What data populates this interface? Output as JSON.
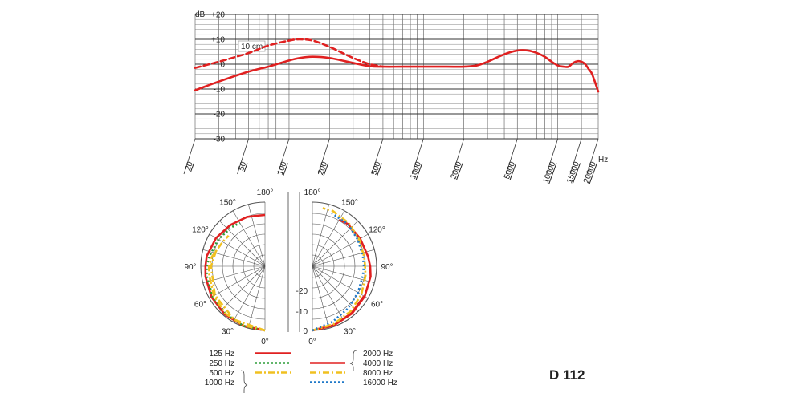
{
  "chart_data": [
    {
      "type": "line",
      "title": "",
      "x_scale": "log",
      "xlim": [
        20,
        20000
      ],
      "ylim": [
        -30,
        20
      ],
      "y_unit_label": "dB",
      "x_unit_label": "Hz",
      "y_ticks": [
        "+20",
        "+10",
        "0",
        "-10",
        "-20",
        "-30"
      ],
      "x_ticks": [
        "20",
        "50",
        "100",
        "200",
        "500",
        "1000",
        "2000",
        "5000",
        "10000",
        "15000",
        "20000"
      ],
      "annotation": "10 cm",
      "series": [
        {
          "style": "solid",
          "color": "#e02020",
          "x": [
            20,
            30,
            50,
            70,
            100,
            120,
            150,
            200,
            300,
            400,
            500,
            700,
            1000,
            1500,
            2000,
            2500,
            3000,
            4000,
            5000,
            6000,
            7000,
            8000,
            9000,
            10000,
            11000,
            12000,
            13000,
            14000,
            15000,
            16000,
            17000,
            18000,
            20000
          ],
          "y": [
            -10.5,
            -7,
            -3,
            -1,
            1.5,
            2.5,
            3,
            2.5,
            0.5,
            -0.8,
            -1,
            -1,
            -1,
            -1,
            -1,
            -0.5,
            1,
            4,
            5.5,
            5.5,
            4.5,
            3,
            1,
            -0.5,
            -1,
            -1,
            0.5,
            1.2,
            1,
            0,
            -2,
            -4,
            -11
          ]
        },
        {
          "style": "dashed",
          "color": "#e02020",
          "x": [
            20,
            30,
            50,
            70,
            100,
            120,
            150,
            200,
            300,
            400,
            500
          ],
          "y": [
            -1.5,
            1,
            4.5,
            7.5,
            9.5,
            10,
            9.5,
            7,
            2.5,
            0,
            -1
          ]
        }
      ]
    },
    {
      "type": "polar",
      "title": "",
      "angle_labels_left": [
        "180°",
        "150°",
        "120°",
        "90°",
        "60°",
        "30°",
        "0°"
      ],
      "angle_labels_right": [
        "180°",
        "150°",
        "120°",
        "90°",
        "60°",
        "30°",
        "0°"
      ],
      "radial_labels": [
        "-20",
        "-10",
        "0"
      ],
      "series": [
        {
          "name": "125 Hz",
          "side": "left",
          "color": "#e02020",
          "style": "solid",
          "angles": [
            0,
            20,
            40,
            60,
            80,
            90,
            100,
            120,
            140,
            160,
            170,
            180
          ],
          "levels": [
            0,
            -0.3,
            -0.6,
            -1,
            -1.5,
            -1.8,
            -2,
            -3,
            -4,
            -4.5,
            -5,
            -5
          ]
        },
        {
          "name": "250 Hz",
          "side": "left",
          "color": "#2e9e3a",
          "style": "dotted",
          "angles": [
            0,
            20,
            40,
            60,
            80,
            90,
            100,
            120,
            140,
            150
          ],
          "levels": [
            0,
            -0.3,
            -1,
            -1.5,
            -2,
            -2.3,
            -3,
            -4,
            -5,
            -5.5
          ]
        },
        {
          "name": "500 Hz",
          "side": "left",
          "color": "#f0c020",
          "style": "dashdot",
          "angles": [
            0,
            20,
            40,
            60,
            80,
            90,
            100,
            120,
            130
          ],
          "levels": [
            0,
            -0.5,
            -1,
            -2,
            -3,
            -3.2,
            -4,
            -6,
            -6.5
          ]
        },
        {
          "name": "1000 Hz",
          "side": "left",
          "color": "#f0c020",
          "style": "dashdot",
          "angles": [
            0,
            30,
            60,
            90,
            110
          ],
          "levels": [
            0,
            -1,
            -2.5,
            -4,
            -5
          ]
        },
        {
          "name": "2000 Hz",
          "side": "right",
          "color": "#e02020",
          "style": "solid",
          "angles": [
            0,
            20,
            40,
            60,
            80,
            90,
            100,
            120,
            140,
            150
          ],
          "levels": [
            0,
            -0.5,
            -1,
            -1.5,
            -2,
            -2.5,
            -3,
            -3.5,
            -3.5,
            -4
          ]
        },
        {
          "name": "4000 Hz",
          "side": "right",
          "color": "#e02020",
          "style": "solid",
          "angles": [
            0,
            20,
            40,
            60
          ],
          "levels": [
            0,
            -0.6,
            -1.2,
            -1.8
          ]
        },
        {
          "name": "8000 Hz",
          "side": "right",
          "color": "#f0c020",
          "style": "dashdot",
          "angles": [
            0,
            20,
            40,
            60,
            80,
            90,
            100,
            120,
            140,
            160,
            170
          ],
          "levels": [
            0,
            -1,
            -2,
            -3,
            -4,
            -4.5,
            -4.5,
            -4,
            -3,
            -2,
            -2
          ]
        },
        {
          "name": "16000 Hz",
          "side": "right",
          "color": "#1f78c8",
          "style": "dotted",
          "angles": [
            0,
            20,
            40,
            60,
            80,
            90,
            100,
            120,
            140,
            160
          ],
          "levels": [
            0,
            -2,
            -3.5,
            -4.5,
            -5,
            -5,
            -5,
            -4.5,
            -3.5,
            -3
          ]
        }
      ]
    }
  ],
  "legend": {
    "left": [
      {
        "label": "125 Hz",
        "color": "#e02020",
        "style": "solid"
      },
      {
        "label": "250 Hz",
        "color": "#2e9e3a",
        "style": "dotted"
      },
      {
        "label": "500 Hz",
        "color": "#f0c020",
        "style": "dashdot"
      },
      {
        "label": "1000 Hz",
        "color": "#f0c020",
        "style": "dashdot"
      }
    ],
    "right": [
      {
        "label": "2000 Hz",
        "color": "#e02020",
        "style": "solid"
      },
      {
        "label": "4000 Hz",
        "color": "#e02020",
        "style": "solid"
      },
      {
        "label": "8000 Hz",
        "color": "#f0c020",
        "style": "dashdot"
      },
      {
        "label": "16000 Hz",
        "color": "#1f78c8",
        "style": "dotted"
      }
    ]
  },
  "model_name": "D 112"
}
